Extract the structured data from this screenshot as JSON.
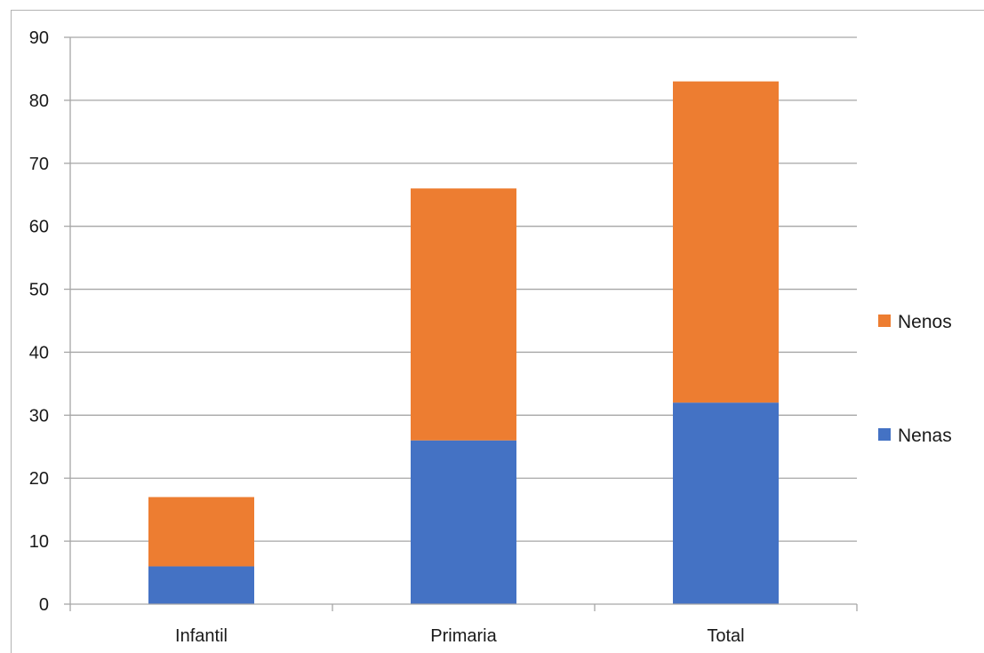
{
  "chart_data": {
    "type": "bar",
    "stacked": true,
    "categories": [
      "Infantil",
      "Primaria",
      "Total"
    ],
    "series": [
      {
        "name": "Nenas",
        "values": [
          6,
          26,
          32
        ],
        "color": "#4472C4"
      },
      {
        "name": "Nenos",
        "values": [
          11,
          40,
          51
        ],
        "color": "#ED7D31"
      }
    ],
    "title": "",
    "xlabel": "",
    "ylabel": "",
    "ylim": [
      0,
      90
    ],
    "yticks": [
      0,
      10,
      20,
      30,
      40,
      50,
      60,
      70,
      80,
      90
    ],
    "grid": true,
    "legend_position": "right",
    "legend_order": [
      "Nenos",
      "Nenas"
    ]
  }
}
